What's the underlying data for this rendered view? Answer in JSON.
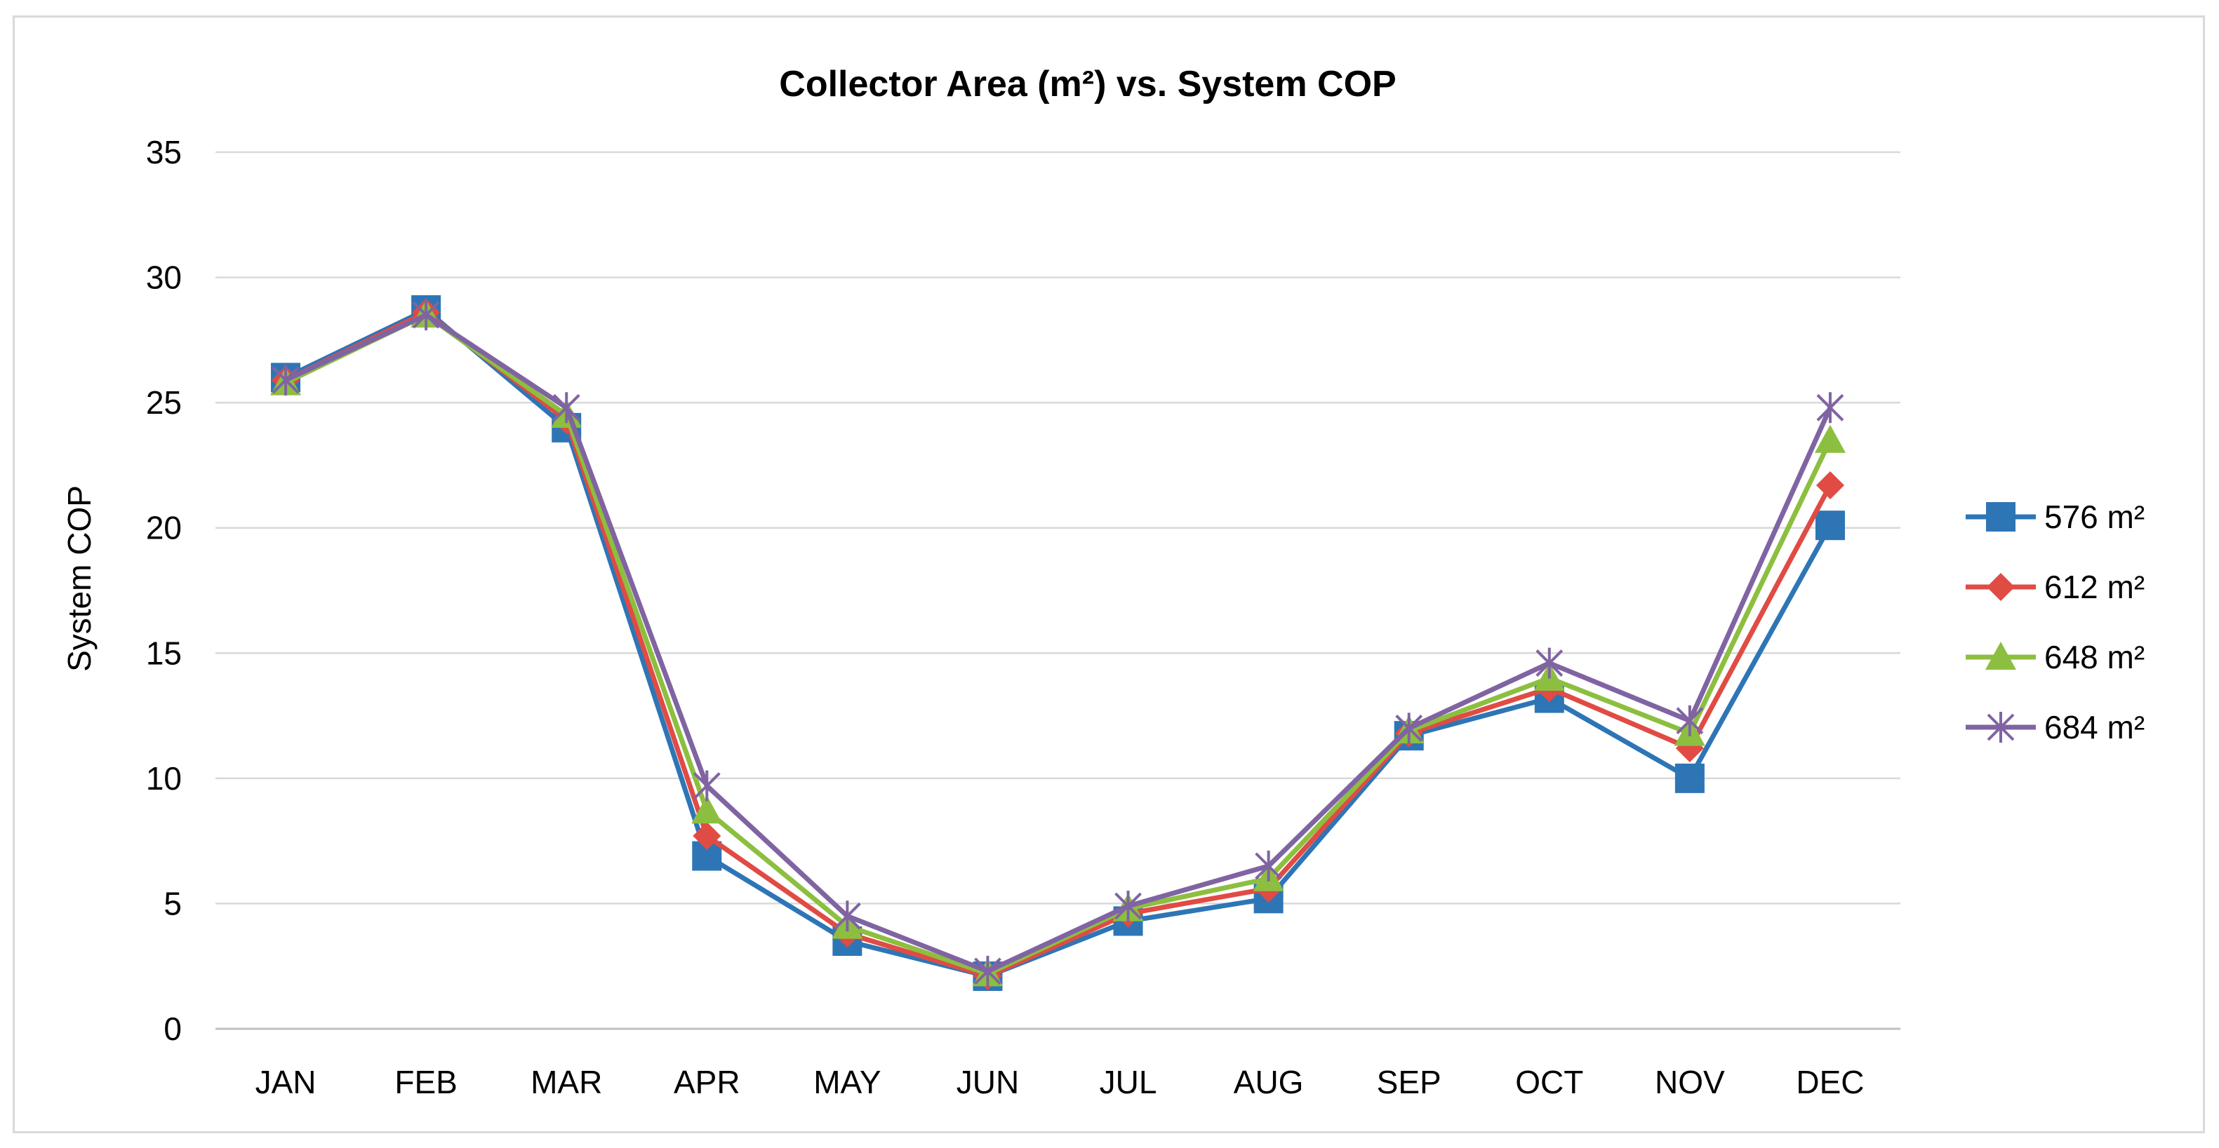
{
  "chart_data": {
    "type": "line",
    "title": "Collector Area (m²) vs. System COP",
    "xlabel": "",
    "ylabel": "System COP",
    "ylim": [
      0,
      35
    ],
    "yticks": [
      0,
      5,
      10,
      15,
      20,
      25,
      30,
      35
    ],
    "grid": true,
    "legend_position": "right",
    "categories": [
      "JAN",
      "FEB",
      "MAR",
      "APR",
      "MAY",
      "JUN",
      "JUL",
      "AUG",
      "SEP",
      "OCT",
      "NOV",
      "DEC"
    ],
    "series": [
      {
        "name": "576 m²",
        "color": "#2e75b6",
        "marker": "square",
        "values": [
          26.0,
          28.7,
          24.0,
          6.9,
          3.5,
          2.1,
          4.3,
          5.2,
          11.7,
          13.2,
          10.0,
          20.1
        ]
      },
      {
        "name": "612 m²",
        "color": "#e04b44",
        "marker": "diamond",
        "values": [
          25.9,
          28.6,
          24.3,
          7.7,
          3.8,
          2.1,
          4.6,
          5.6,
          11.8,
          13.6,
          11.2,
          21.7
        ]
      },
      {
        "name": "648 m²",
        "color": "#8cbf3f",
        "marker": "triangle",
        "values": [
          25.8,
          28.5,
          24.5,
          8.7,
          4.1,
          2.2,
          4.8,
          6.0,
          11.9,
          14.0,
          11.8,
          23.5
        ]
      },
      {
        "name": "684 m²",
        "color": "#8064a2",
        "marker": "star",
        "values": [
          25.9,
          28.5,
          24.8,
          9.7,
          4.5,
          2.3,
          4.9,
          6.5,
          12.0,
          14.6,
          12.3,
          24.8
        ]
      }
    ]
  }
}
